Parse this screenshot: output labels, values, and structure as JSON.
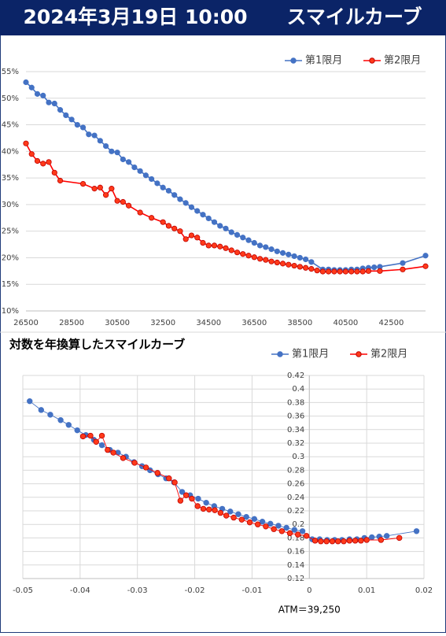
{
  "header": {
    "title": "2024年3月19日 10:00　　スマイルカーブ"
  },
  "chart_data": [
    {
      "type": "line",
      "xlim": [
        26500,
        44000
      ],
      "xticks": [
        26500,
        28500,
        30500,
        32500,
        34500,
        36500,
        38500,
        40500,
        42500
      ],
      "ylim": [
        10,
        55
      ],
      "yticks": [
        {
          "value": 10,
          "label": "10%"
        },
        {
          "value": 15,
          "label": "15%"
        },
        {
          "value": 20,
          "label": "20%"
        },
        {
          "value": 25,
          "label": "25%"
        },
        {
          "value": 30,
          "label": "30%"
        },
        {
          "value": 35,
          "label": "35%"
        },
        {
          "value": 40,
          "label": "40%"
        },
        {
          "value": 45,
          "label": "45%"
        },
        {
          "value": 50,
          "label": "50%"
        },
        {
          "value": 55,
          "label": "55%"
        }
      ],
      "grid": "y",
      "legend": "top-right",
      "series": [
        {
          "name": "第1限月",
          "color": "#4472c4",
          "x": [
            26500,
            26750,
            27000,
            27250,
            27500,
            27750,
            28000,
            28250,
            28500,
            28750,
            29000,
            29250,
            29500,
            29750,
            30000,
            30250,
            30500,
            30750,
            31000,
            31250,
            31500,
            31750,
            32000,
            32250,
            32500,
            32750,
            33000,
            33250,
            33500,
            33750,
            34000,
            34250,
            34500,
            34750,
            35000,
            35250,
            35500,
            35750,
            36000,
            36250,
            36500,
            36750,
            37000,
            37250,
            37500,
            37750,
            38000,
            38250,
            38500,
            38750,
            39000,
            39500,
            39750,
            40000,
            40250,
            40500,
            40750,
            41000,
            41250,
            41500,
            41750,
            42000,
            43000,
            44000
          ],
          "values": [
            53.0,
            52.0,
            50.8,
            50.5,
            49.2,
            49.0,
            47.8,
            46.8,
            46.0,
            45.0,
            44.5,
            43.2,
            43.0,
            42.0,
            41.0,
            40.0,
            39.8,
            38.5,
            38.0,
            37.0,
            36.3,
            35.5,
            34.8,
            34.0,
            33.2,
            32.6,
            31.8,
            31.0,
            30.3,
            29.5,
            28.8,
            28.1,
            27.4,
            26.7,
            26.0,
            25.5,
            24.8,
            24.3,
            23.8,
            23.3,
            22.8,
            22.3,
            22.0,
            21.6,
            21.2,
            20.9,
            20.6,
            20.3,
            20.0,
            19.7,
            19.2,
            17.8,
            17.8,
            17.7,
            17.7,
            17.7,
            17.8,
            17.8,
            18.0,
            18.1,
            18.2,
            18.3,
            19.0,
            20.4
          ]
        },
        {
          "name": "第2限月",
          "color": "#ff0000",
          "x": [
            26500,
            26750,
            27000,
            27250,
            27500,
            27750,
            28000,
            29000,
            29500,
            29750,
            30000,
            30250,
            30500,
            30750,
            31000,
            31500,
            32000,
            32500,
            32750,
            33000,
            33250,
            33500,
            33750,
            34000,
            34250,
            34500,
            34750,
            35000,
            35250,
            35500,
            35750,
            36000,
            36250,
            36500,
            36750,
            37000,
            37250,
            37500,
            37750,
            38000,
            38250,
            38500,
            38750,
            39000,
            39250,
            39500,
            39750,
            40000,
            40250,
            40500,
            40750,
            41000,
            41250,
            41500,
            42000,
            43000,
            44000
          ],
          "values": [
            41.5,
            39.5,
            38.2,
            37.7,
            38.0,
            36.0,
            34.5,
            33.9,
            33.0,
            33.2,
            31.8,
            33.0,
            30.7,
            30.5,
            29.8,
            28.5,
            27.5,
            26.7,
            26.0,
            25.5,
            25.0,
            23.5,
            24.2,
            23.8,
            22.8,
            22.3,
            22.3,
            22.1,
            21.8,
            21.4,
            21.0,
            20.7,
            20.4,
            20.1,
            19.8,
            19.6,
            19.3,
            19.1,
            18.9,
            18.7,
            18.5,
            18.3,
            18.1,
            17.9,
            17.6,
            17.4,
            17.4,
            17.4,
            17.4,
            17.4,
            17.4,
            17.4,
            17.4,
            17.5,
            17.5,
            17.8,
            18.4
          ]
        }
      ]
    },
    {
      "type": "line",
      "title": "対数を年換算したスマイルカーブ",
      "annotation": "ATM＝39,250",
      "xlim": [
        -0.05,
        0.02
      ],
      "xticks": [
        -0.05,
        -0.04,
        -0.03,
        -0.02,
        -0.01,
        0,
        0.01,
        0.02
      ],
      "ylim": [
        0.12,
        0.42
      ],
      "yticks": [
        0.12,
        0.14,
        0.16,
        0.18,
        0.2,
        0.22,
        0.24,
        0.26,
        0.28,
        0.3,
        0.32,
        0.34,
        0.36,
        0.38,
        0.4,
        0.42
      ],
      "grid": "both",
      "legend": "top-right",
      "series": [
        {
          "name": "第1限月",
          "color": "#4472c4",
          "x": [
            -0.0488,
            -0.0468,
            -0.0452,
            -0.0434,
            -0.042,
            -0.0405,
            -0.039,
            -0.0376,
            -0.0362,
            -0.0348,
            -0.0334,
            -0.032,
            -0.0306,
            -0.0292,
            -0.0278,
            -0.0264,
            -0.025,
            -0.0236,
            -0.0222,
            -0.0208,
            -0.0194,
            -0.018,
            -0.0166,
            -0.0152,
            -0.0138,
            -0.0124,
            -0.011,
            -0.0096,
            -0.0082,
            -0.0068,
            -0.0054,
            -0.004,
            -0.0026,
            -0.0012,
            0.0005,
            0.0018,
            0.0031,
            0.0044,
            0.0057,
            0.007,
            0.0083,
            0.0096,
            0.0109,
            0.0122,
            0.0135,
            0.0187
          ],
          "values": [
            0.382,
            0.369,
            0.362,
            0.354,
            0.347,
            0.339,
            0.332,
            0.325,
            0.317,
            0.31,
            0.306,
            0.3,
            0.292,
            0.286,
            0.28,
            0.274,
            0.268,
            0.262,
            0.248,
            0.243,
            0.238,
            0.232,
            0.227,
            0.223,
            0.219,
            0.215,
            0.211,
            0.208,
            0.204,
            0.201,
            0.198,
            0.195,
            0.192,
            0.19,
            0.178,
            0.178,
            0.177,
            0.177,
            0.177,
            0.178,
            0.178,
            0.18,
            0.181,
            0.182,
            0.183,
            0.19
          ]
        },
        {
          "name": "第2限月",
          "color": "#ff0000",
          "x": [
            -0.0395,
            -0.0382,
            -0.0372,
            -0.0362,
            -0.0352,
            -0.0342,
            -0.0325,
            -0.0305,
            -0.0285,
            -0.0265,
            -0.0245,
            -0.0235,
            -0.0225,
            -0.0215,
            -0.0205,
            -0.0195,
            -0.0185,
            -0.0175,
            -0.0165,
            -0.0155,
            -0.0145,
            -0.0132,
            -0.0118,
            -0.0104,
            -0.009,
            -0.0076,
            -0.0062,
            -0.0048,
            -0.0034,
            -0.002,
            -0.0005,
            0.001,
            0.002,
            0.003,
            0.004,
            0.005,
            0.006,
            0.007,
            0.008,
            0.009,
            0.01,
            0.0125,
            0.0157
          ],
          "values": [
            0.33,
            0.331,
            0.322,
            0.331,
            0.31,
            0.306,
            0.298,
            0.291,
            0.284,
            0.276,
            0.268,
            0.262,
            0.235,
            0.243,
            0.238,
            0.227,
            0.223,
            0.222,
            0.221,
            0.217,
            0.213,
            0.21,
            0.207,
            0.203,
            0.2,
            0.197,
            0.193,
            0.19,
            0.187,
            0.185,
            0.183,
            0.176,
            0.175,
            0.175,
            0.175,
            0.175,
            0.175,
            0.176,
            0.176,
            0.176,
            0.177,
            0.177,
            0.18
          ]
        }
      ]
    }
  ]
}
